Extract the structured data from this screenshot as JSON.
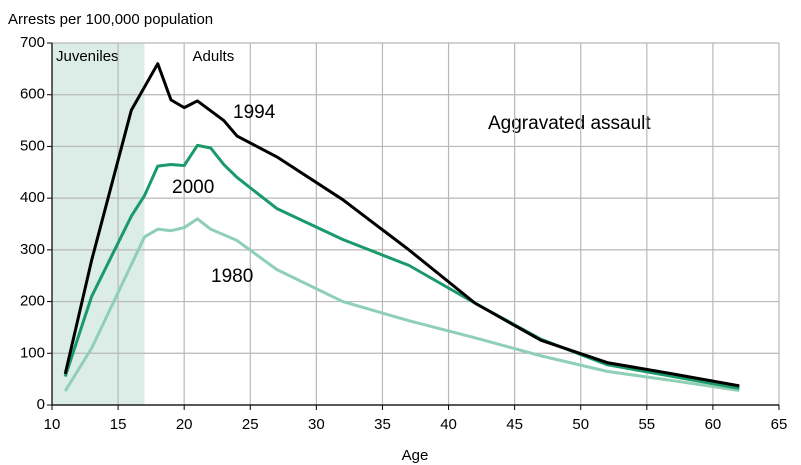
{
  "chart_data": {
    "type": "line",
    "y_label": "Arrests per 100,000 population",
    "x_label": "Age",
    "annotation": "Aggravated assault",
    "regions": [
      {
        "label": "Juveniles",
        "xlim": [
          10,
          17
        ]
      }
    ],
    "region_right_label": "Adults",
    "xlim": [
      10,
      65
    ],
    "xticks": [
      10,
      15,
      20,
      25,
      30,
      35,
      40,
      45,
      50,
      55,
      60,
      65
    ],
    "ylim": [
      0,
      700
    ],
    "yticks": [
      0,
      100,
      200,
      300,
      400,
      500,
      600,
      700
    ],
    "grid": true,
    "series": [
      {
        "name": "1994",
        "color": "#000000",
        "x": [
          11,
          13,
          16,
          18,
          19,
          20,
          21,
          23,
          24,
          27,
          32,
          37,
          42,
          47,
          52,
          57,
          62
        ],
        "values": [
          60,
          280,
          570,
          660,
          590,
          575,
          588,
          550,
          520,
          480,
          397,
          300,
          197,
          125,
          82,
          60,
          37
        ]
      },
      {
        "name": "2000",
        "color": "#1a9a6a",
        "x": [
          11,
          13,
          16,
          17,
          18,
          19,
          20,
          21,
          22,
          23,
          24,
          27,
          32,
          37,
          42,
          47,
          52,
          57,
          62
        ],
        "values": [
          55,
          210,
          365,
          405,
          462,
          465,
          463,
          502,
          497,
          465,
          440,
          380,
          320,
          270,
          197,
          127,
          78,
          55,
          32
        ]
      },
      {
        "name": "1980",
        "color": "#8fcfb6",
        "x": [
          11,
          13,
          17,
          18,
          19,
          20,
          21,
          22,
          24,
          27,
          32,
          37,
          42,
          47,
          52,
          57,
          62
        ],
        "values": [
          27,
          110,
          325,
          340,
          337,
          343,
          360,
          340,
          318,
          262,
          200,
          163,
          130,
          95,
          65,
          47,
          28
        ]
      }
    ]
  }
}
